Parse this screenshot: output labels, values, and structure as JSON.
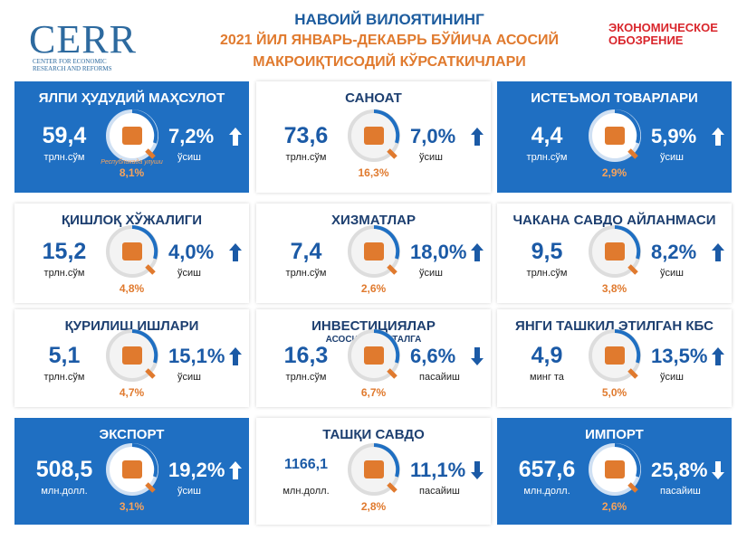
{
  "header": {
    "logo": "CERR",
    "logo_sub": "CENTER FOR ECONOMIC RESEARCH AND REFORMS",
    "title_lines": [
      "НАВОИЙ ВИЛОЯТИНИНГ",
      "2021 ЙИЛ ЯНВАРЬ-ДЕКАБРЬ БЎЙИЧА АСОСИЙ",
      "МАКРОИҚТИСОДИЙ КЎРСАТКИЧЛАРИ"
    ],
    "partner_lines": [
      "ЭКОНОМИЧЕСКОЕ",
      "ОБОЗРЕНИЕ"
    ]
  },
  "cards": [
    {
      "title": "ЯЛПИ ҲУДУДИЙ МАҲСУЛОТ",
      "value": "59,4",
      "unit": "трлн.сўм",
      "change": "7,2%",
      "change_label": "ўсиш",
      "share": "8,1%",
      "share_note": "Республикада улуши",
      "direction": "up",
      "style": "blue"
    },
    {
      "title": "САНОАТ",
      "value": "73,6",
      "unit": "трлн.сўм",
      "change": "7,0%",
      "change_label": "ўсиш",
      "share": "16,3%",
      "direction": "up",
      "style": "white"
    },
    {
      "title": "ИСТЕЪМОЛ ТОВАРЛАРИ",
      "value": "4,4",
      "unit": "трлн.сўм",
      "change": "5,9%",
      "change_label": "ўсиш",
      "share": "2,9%",
      "direction": "up",
      "style": "blue"
    },
    {
      "title": "ҚИШЛОҚ ХЎЖАЛИГИ",
      "value": "15,2",
      "unit": "трлн.сўм",
      "change": "4,0%",
      "change_label": "ўсиш",
      "share": "4,8%",
      "direction": "up",
      "style": "white"
    },
    {
      "title": "ХИЗМАТЛАР",
      "value": "7,4",
      "unit": "трлн.сўм",
      "change": "18,0%",
      "change_label": "ўсиш",
      "share": "2,6%",
      "direction": "up",
      "style": "white"
    },
    {
      "title": "ЧАКАНА САВДО АЙЛАНМАСИ",
      "value": "9,5",
      "unit": "трлн.сўм",
      "change": "8,2%",
      "change_label": "ўсиш",
      "share": "3,8%",
      "direction": "up",
      "style": "white"
    },
    {
      "title": "ҚУРИЛИШ ИШЛАРИ",
      "value": "5,1",
      "unit": "трлн.сўм",
      "change": "15,1%",
      "change_label": "ўсиш",
      "share": "4,7%",
      "direction": "up",
      "style": "white"
    },
    {
      "title": "ИНВЕСТИЦИЯЛАР",
      "subtitle": "АСОСИЙ КАПИТАЛГА",
      "value": "16,3",
      "unit": "трлн.сўм",
      "change": "6,6%",
      "change_label": "пасайиш",
      "share": "6,7%",
      "direction": "down",
      "style": "white"
    },
    {
      "title": "ЯНГИ ТАШКИЛ ЭТИЛГАН КБС",
      "value": "4,9",
      "unit": "минг та",
      "change": "13,5%",
      "change_label": "ўсиш",
      "share": "5,0%",
      "direction": "up",
      "style": "white"
    },
    {
      "title": "ЭКСПОРТ",
      "value": "508,5",
      "unit": "млн.долл.",
      "change": "19,2%",
      "change_label": "ўсиш",
      "share": "3,1%",
      "direction": "up",
      "style": "blue"
    },
    {
      "title": "ТАШҚИ САВДО",
      "value": "1166,1",
      "unit": "млн.долл.",
      "change": "11,1%",
      "change_label": "пасайиш",
      "share": "2,8%",
      "direction": "down",
      "style": "white"
    },
    {
      "title": "ИМПОРТ",
      "value": "657,6",
      "unit": "млн.долл.",
      "change": "25,8%",
      "change_label": "пасайиш",
      "share": "2,6%",
      "direction": "down",
      "style": "blue"
    }
  ]
}
